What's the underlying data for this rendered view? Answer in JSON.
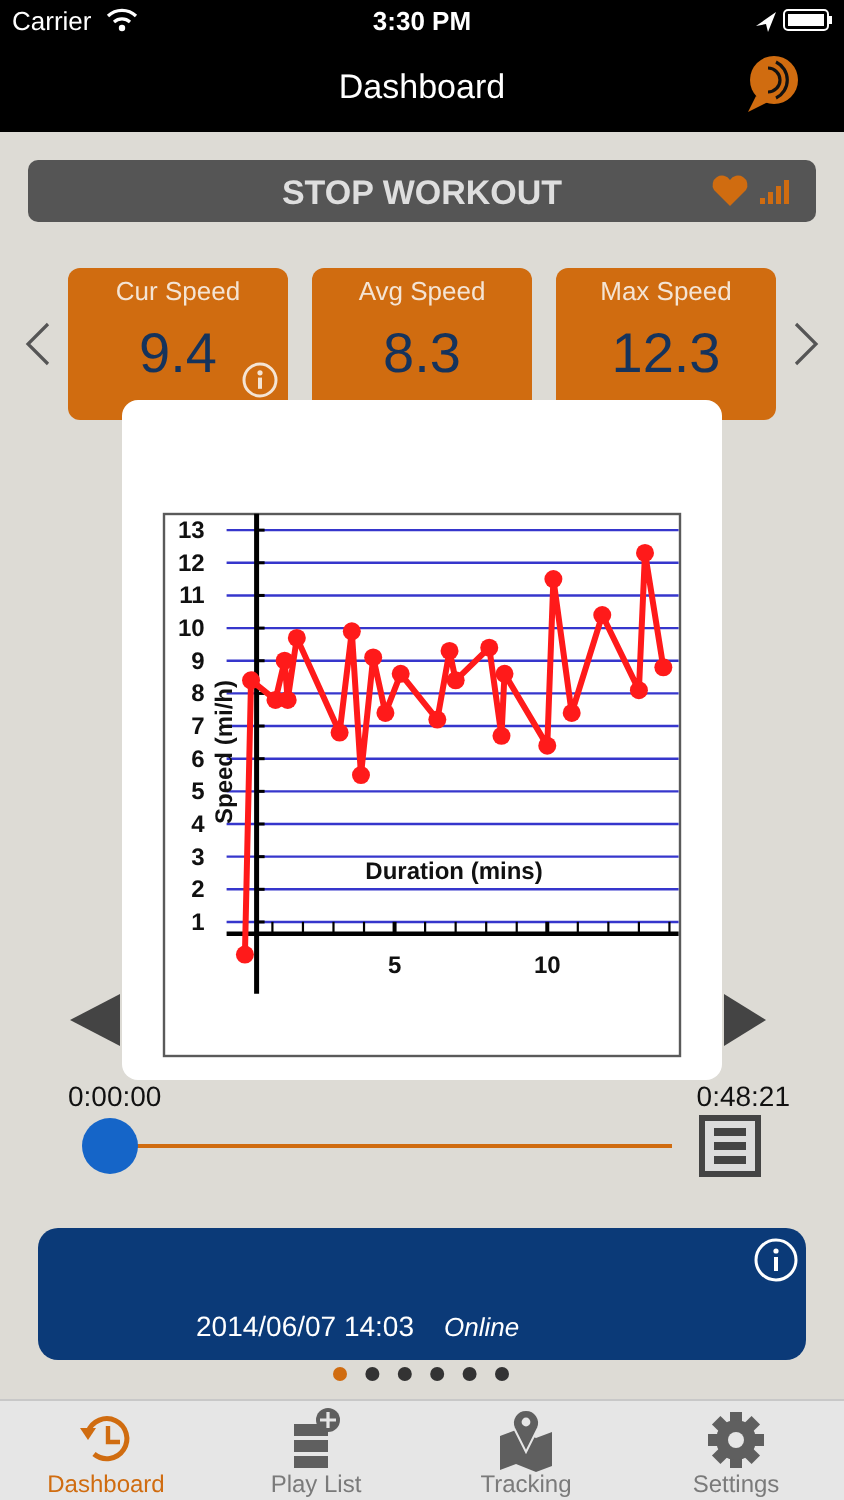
{
  "chart_data": [
    {
      "type": "other",
      "title": "Dashboard",
      "annotations": [
        "Carrier",
        "3:30 PM",
        "STOP WORKOUT"
      ],
      "categories": [
        "Cur Speed",
        "Avg Speed",
        "Max Speed"
      ],
      "values": [
        9.4,
        8.3,
        12.3
      ],
      "data_labels": true,
      "color": "#d06c10"
    },
    {
      "type": "line",
      "xlabel": "Duration (mins)",
      "ylabel": "Speed (mi/h)",
      "x": [
        0.1,
        0.3,
        1.1,
        1.4,
        1.5,
        1.8,
        3.2,
        3.6,
        3.9,
        4.3,
        4.7,
        5.2,
        6.4,
        6.8,
        7.0,
        8.1,
        8.5,
        8.6,
        10.0,
        10.2,
        10.8,
        11.8,
        13.0,
        13.2,
        13.8
      ],
      "values": [
        0.0,
        8.4,
        7.8,
        9.0,
        7.8,
        9.7,
        6.8,
        9.9,
        5.5,
        9.1,
        7.4,
        8.6,
        7.2,
        9.3,
        8.4,
        9.4,
        6.7,
        8.6,
        6.4,
        11.5,
        7.4,
        10.4,
        8.1,
        12.3,
        8.8
      ],
      "color": "#ff1a1a",
      "marker": "circle",
      "xlim": [
        -0.5,
        14.3
      ],
      "ylim": [
        -1.2,
        13.5
      ],
      "xticks": [
        {
          "value": 1,
          "label": null
        },
        {
          "value": 2,
          "label": null
        },
        {
          "value": 3,
          "label": null
        },
        {
          "value": 4,
          "label": null
        },
        5,
        {
          "value": 6,
          "label": null
        },
        {
          "value": 7,
          "label": null
        },
        {
          "value": 8,
          "label": null
        },
        {
          "value": 9,
          "label": null
        },
        10,
        {
          "value": 11,
          "label": null
        },
        {
          "value": 12,
          "label": null
        },
        {
          "value": 13,
          "label": null
        },
        {
          "value": 14,
          "label": null
        }
      ],
      "yticks": [
        1,
        2,
        3,
        4,
        5,
        6,
        7,
        8,
        9,
        10,
        11,
        12,
        13
      ],
      "grid": "y"
    },
    {
      "type": "other",
      "annotations": [
        "0:00:00",
        "0:48:21",
        "2014/06/07 14:03",
        "Online"
      ],
      "categories": [
        "Dashboard",
        "Play List",
        "Tracking",
        "Settings"
      ]
    }
  ]
}
